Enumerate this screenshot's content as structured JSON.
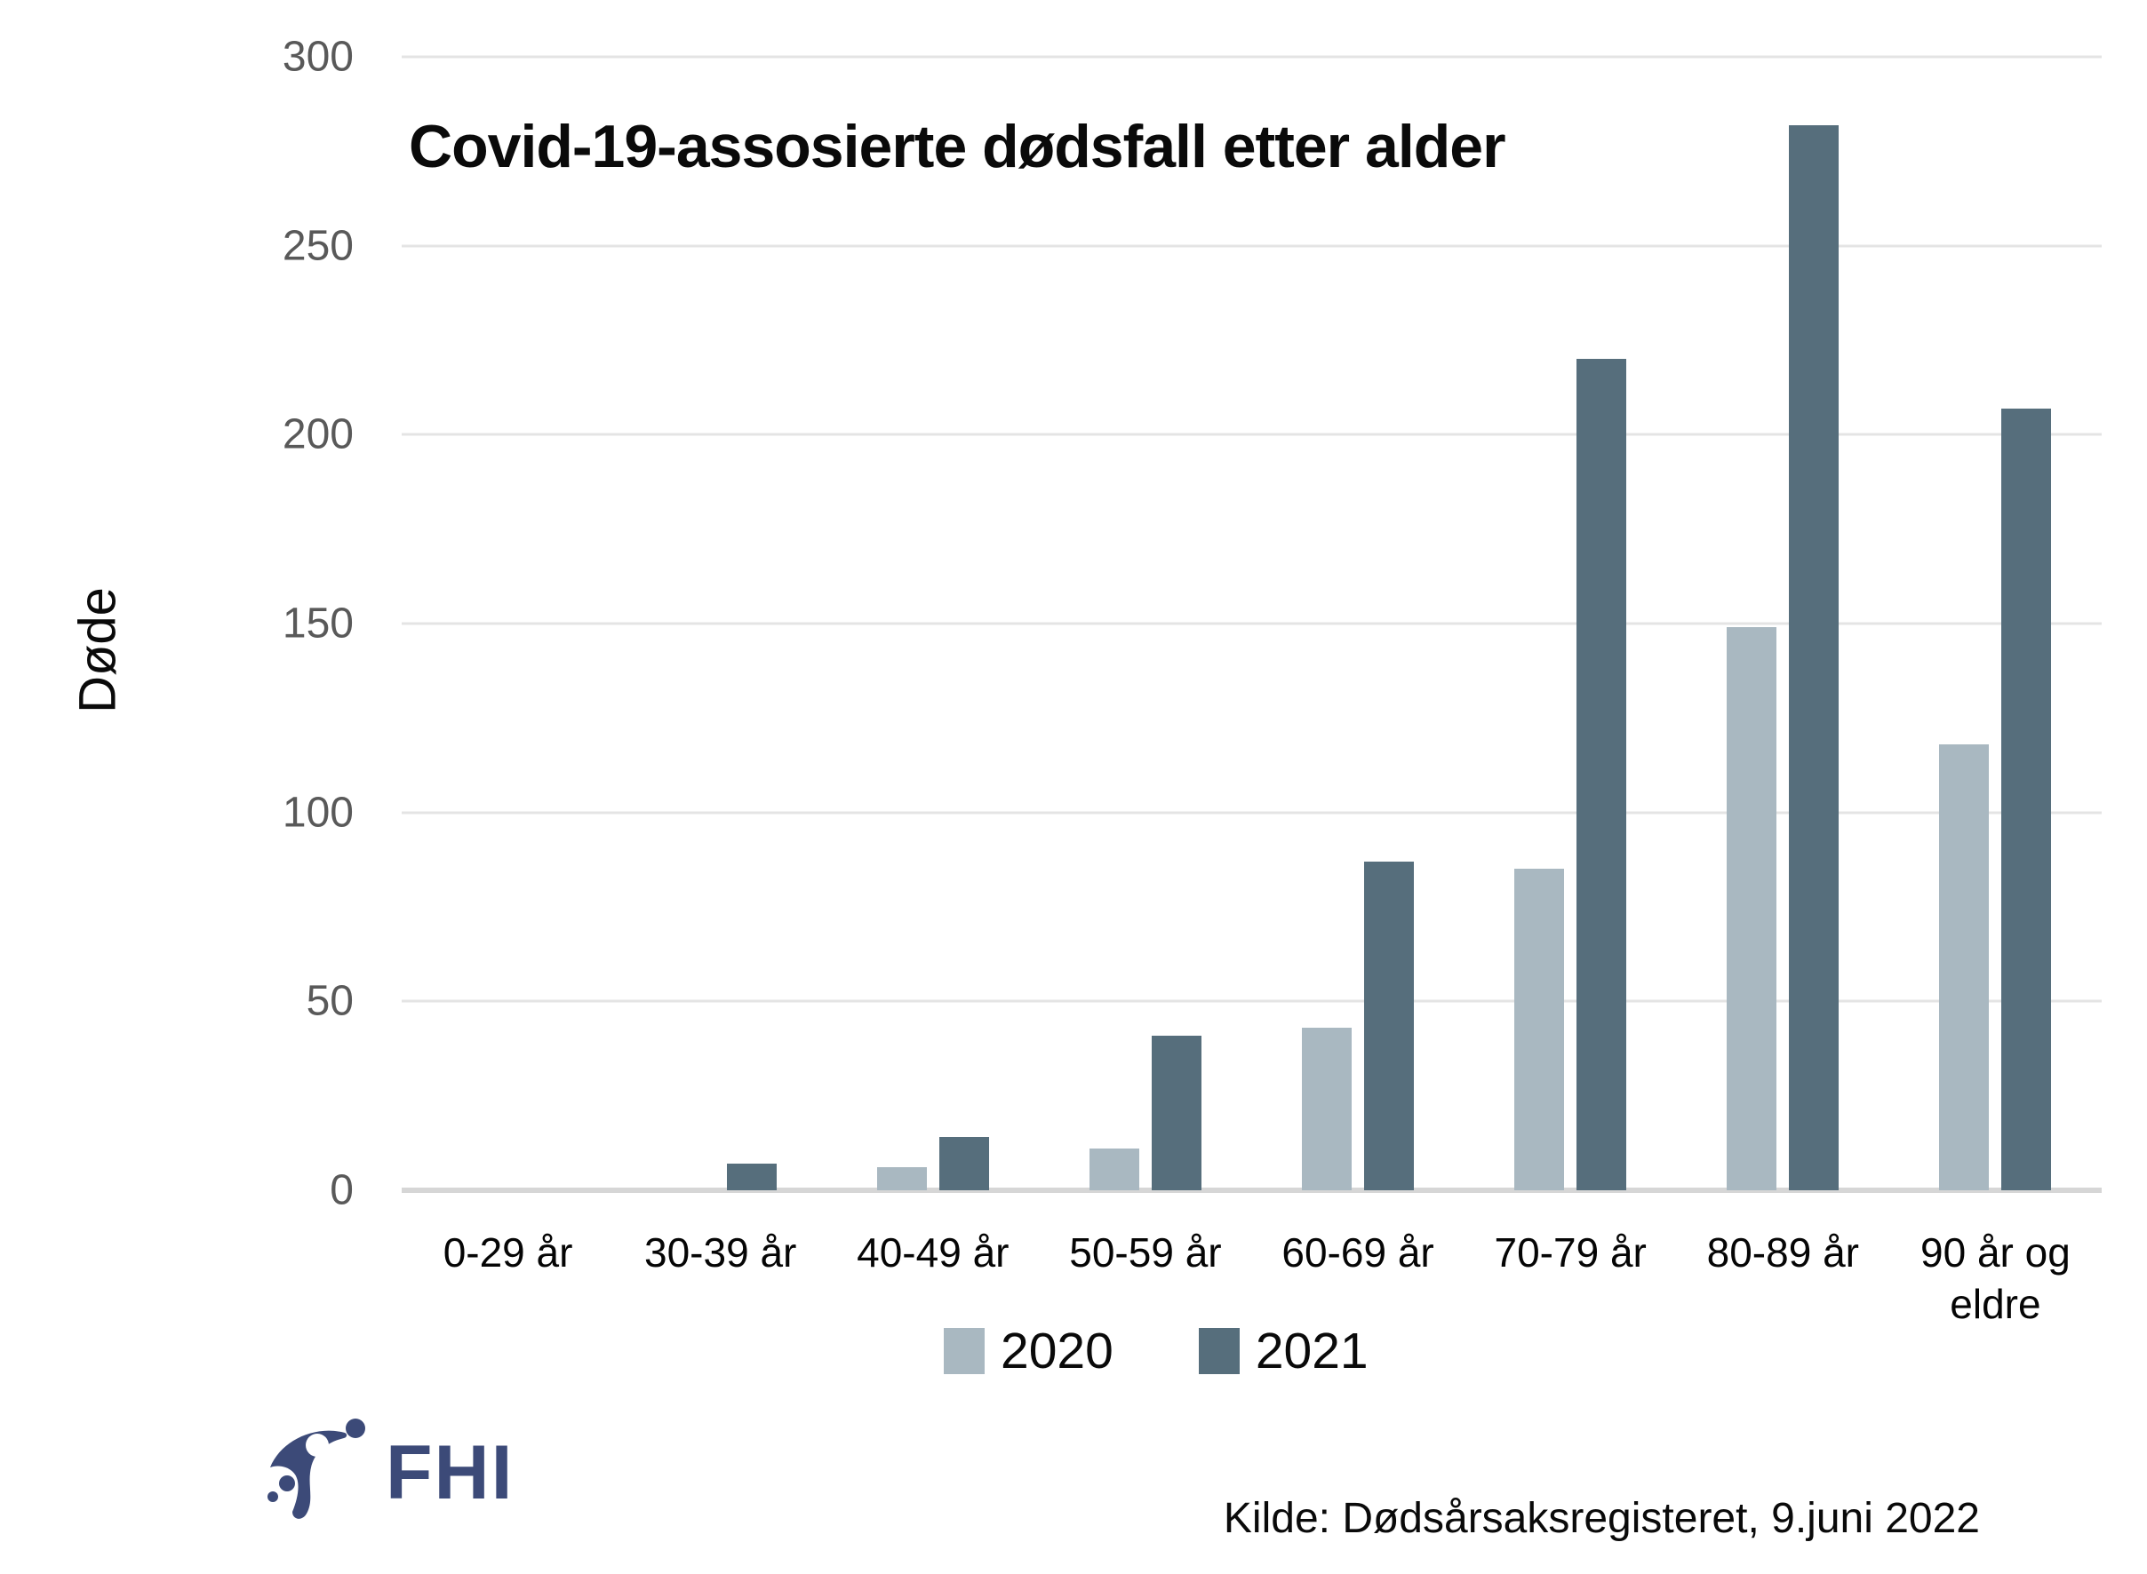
{
  "title": "Covid-19-assosierte dødsfall etter alder",
  "y_axis": {
    "label": "Døde"
  },
  "source": "Kilde: Dødsårsaksregisteret, 9.juni 2022",
  "logo": {
    "text": "FHI",
    "color": "#3c4a78"
  },
  "colors": {
    "series_2020": "#a9b8c1",
    "series_2021": "#566e7c",
    "gridline": "#e4e4e4",
    "baseline": "#d6d6d6",
    "tick_label": "#595959"
  },
  "chart_data": {
    "type": "bar",
    "title": "Covid-19-assosierte dødsfall etter alder",
    "xlabel": "",
    "ylabel": "Døde",
    "ylim": [
      0,
      300
    ],
    "yticks": [
      0,
      50,
      100,
      150,
      200,
      250,
      300
    ],
    "grid": true,
    "legend_position": "bottom",
    "categories": [
      "0-29 år",
      "30-39 år",
      "40-49 år",
      "50-59 år",
      "60-69 år",
      "70-79 år",
      "80-89 år",
      "90 år og eldre"
    ],
    "series": [
      {
        "name": "2020",
        "color": "#a9b8c1",
        "values": [
          0,
          0,
          6,
          11,
          43,
          85,
          149,
          118
        ]
      },
      {
        "name": "2021",
        "color": "#566e7c",
        "values": [
          0,
          7,
          14,
          41,
          87,
          220,
          282,
          207
        ]
      }
    ]
  }
}
